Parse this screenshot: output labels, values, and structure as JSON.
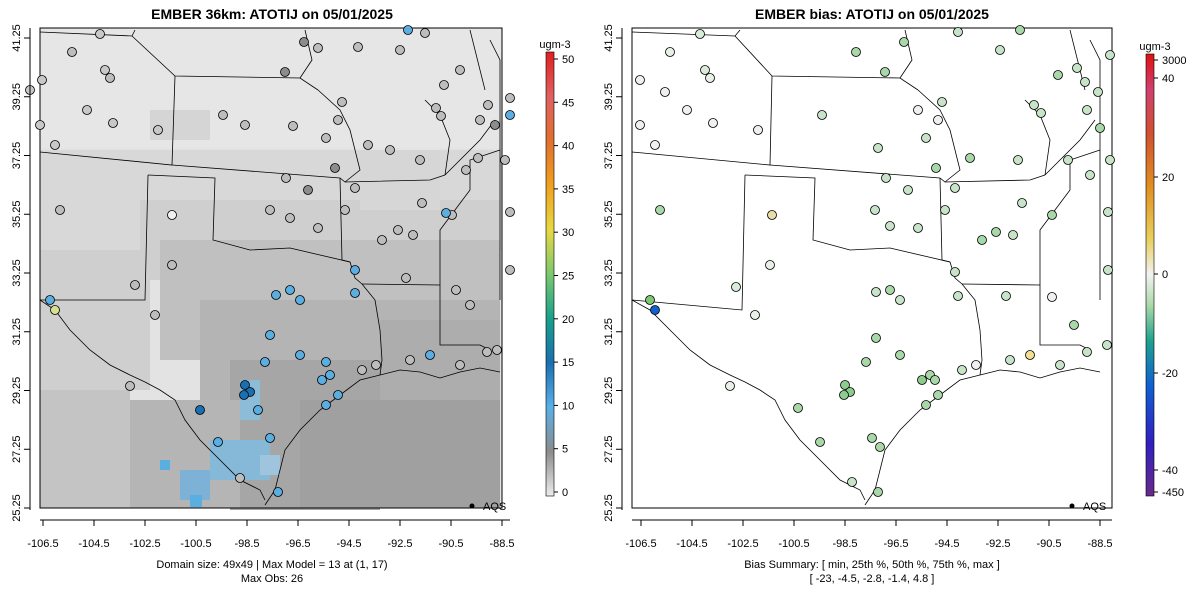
{
  "left": {
    "title": "EMBER 36km: ATOTIJ on 05/01/2025",
    "unit": "ugm-3",
    "legend_label": "AQS",
    "footer_line1": "Domain size: 49x49 | Max Model = 13 at (1, 17)",
    "footer_line2": "Max Obs: 26",
    "colorbar_ticks": [
      "0",
      "5",
      "10",
      "15",
      "20",
      "25",
      "30",
      "35",
      "40",
      "45",
      "50"
    ]
  },
  "right": {
    "title": "EMBER bias: ATOTIJ on 05/01/2025",
    "unit": "ugm-3",
    "legend_label": "AQS",
    "footer_line1": "Bias Summary: [ min, 25th %, 50th %, 75th %, max ]",
    "footer_line2": "[ -23,   -4.5,   -2.8,   -1.4,   4.8 ]",
    "colorbar_ticks": [
      "3000",
      "40",
      "20",
      "0",
      "-20",
      "-40",
      "-450"
    ]
  },
  "axes": {
    "x_ticks": [
      "-106.5",
      "-104.5",
      "-102.5",
      "-100.5",
      "-98.5",
      "-96.5",
      "-94.5",
      "-92.5",
      "-90.5",
      "-88.5"
    ],
    "y_ticks": [
      "41.25",
      "39.25",
      "37.25",
      "35.25",
      "33.25",
      "31.25",
      "29.25",
      "27.25",
      "25.25"
    ]
  },
  "colors": {
    "gray_low": "#e6e6e6",
    "gray_high": "#8f8f8f",
    "blue_high": "#5aaee0",
    "bias_green": "#a8d8a8"
  }
}
